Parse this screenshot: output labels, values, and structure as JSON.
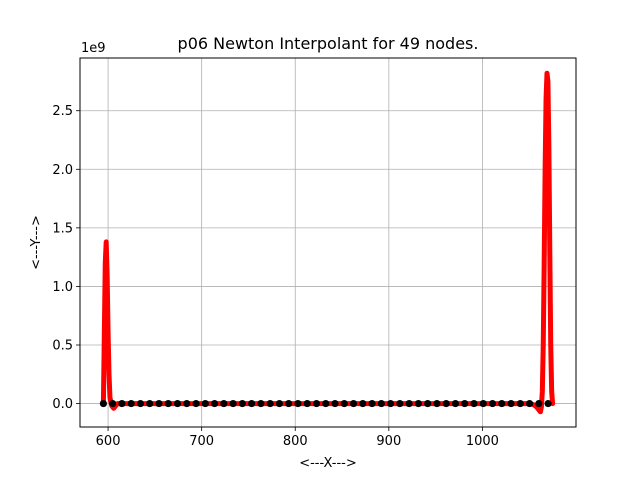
{
  "chart_data": {
    "type": "line",
    "title": "p06 Newton Interpolant for 49 nodes.",
    "xlabel": "<---X--->",
    "ylabel": "<---Y--->",
    "y_offset_label": "1e9",
    "xlim": [
      570,
      1100
    ],
    "ylim": [
      -0.2,
      2.95
    ],
    "xticks": [
      600,
      700,
      800,
      900,
      1000
    ],
    "xtick_labels": [
      "600",
      "700",
      "800",
      "900",
      "1000"
    ],
    "yticks": [
      0.0,
      0.5,
      1.0,
      1.5,
      2.0,
      2.5
    ],
    "ytick_labels": [
      "0.0",
      "0.5",
      "1.0",
      "1.5",
      "2.0",
      "2.5"
    ],
    "grid": true,
    "colors": {
      "interpolant": "#ff0000",
      "nodes": "#000000",
      "grid": "#b0b0b0"
    },
    "series": [
      {
        "kind": "line",
        "x": [
          595,
          596,
          597,
          598,
          599,
          600,
          601,
          602,
          604,
          606,
          608,
          610,
          615,
          625,
          700,
          800,
          900,
          1000,
          1040,
          1050,
          1055,
          1058,
          1060,
          1062,
          1063,
          1064,
          1065,
          1066,
          1067,
          1068,
          1069,
          1070,
          1071,
          1072,
          1073,
          1074,
          1075
        ],
        "y": [
          0.0,
          0.6,
          1.2,
          1.38,
          1.1,
          0.6,
          0.25,
          0.05,
          -0.02,
          -0.04,
          -0.02,
          0.0,
          0.0,
          0.0,
          0.0,
          0.0,
          0.0,
          0.0,
          0.0,
          0.0,
          -0.01,
          -0.03,
          -0.05,
          -0.07,
          -0.03,
          0.1,
          0.5,
          1.2,
          2.0,
          2.6,
          2.82,
          2.75,
          2.2,
          1.3,
          0.5,
          0.1,
          0.0
        ]
      },
      {
        "kind": "scatter",
        "x": [
          595.0,
          604.9,
          614.8,
          624.7,
          634.6,
          644.5,
          654.4,
          664.3,
          674.2,
          684.1,
          694.0,
          703.9,
          713.8,
          723.7,
          733.6,
          743.5,
          753.4,
          763.3,
          773.2,
          783.1,
          793.0,
          802.9,
          812.8,
          822.7,
          832.6,
          842.5,
          852.4,
          862.3,
          872.2,
          882.1,
          892.0,
          901.9,
          911.8,
          921.7,
          931.6,
          941.5,
          951.4,
          961.3,
          971.2,
          981.1,
          991.0,
          1000.9,
          1010.8,
          1020.7,
          1030.6,
          1040.5,
          1050.4,
          1060.3,
          1070.2
        ],
        "y": [
          0,
          0,
          0,
          0,
          0,
          0,
          0,
          0,
          0,
          0,
          0,
          0,
          0,
          0,
          0,
          0,
          0,
          0,
          0,
          0,
          0,
          0,
          0,
          0,
          0,
          0,
          0,
          0,
          0,
          0,
          0,
          0,
          0,
          0,
          0,
          0,
          0,
          0,
          0,
          0,
          0,
          0,
          0,
          0,
          0,
          0,
          0,
          0,
          0
        ]
      }
    ]
  }
}
